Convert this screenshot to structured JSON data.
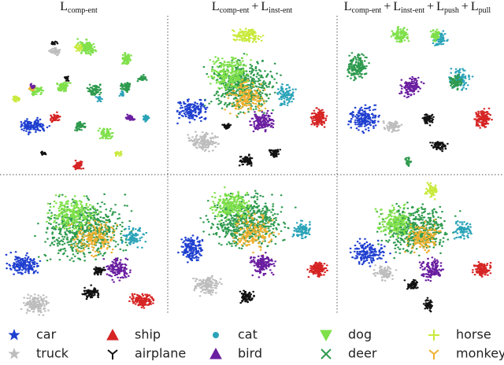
{
  "titles": [
    [
      {
        "base": "L",
        "sub": "comp-ent"
      }
    ],
    [
      {
        "base": "L",
        "sub": "comp-ent"
      },
      {
        "base": "L",
        "sub": "inst-ent"
      }
    ],
    [
      {
        "base": "L",
        "sub": "comp-ent"
      },
      {
        "base": "L",
        "sub": "inst-ent"
      },
      {
        "base": "L",
        "sub": "push"
      },
      {
        "base": "L",
        "sub": "pull"
      }
    ]
  ],
  "operator": "+",
  "legend": [
    {
      "label": "car",
      "color": "#1f3fd0",
      "marker": "star"
    },
    {
      "label": "truck",
      "color": "#bdbdbd",
      "marker": "star"
    },
    {
      "label": "ship",
      "color": "#d62424",
      "marker": "triangle"
    },
    {
      "label": "airplane",
      "color": "#111111",
      "marker": "tri-down"
    },
    {
      "label": "cat",
      "color": "#2aa3b8",
      "marker": "circle"
    },
    {
      "label": "bird",
      "color": "#6a1ea0",
      "marker": "triangle"
    },
    {
      "label": "dog",
      "color": "#7fe04a",
      "marker": "triangle-down"
    },
    {
      "label": "deer",
      "color": "#2e9a4e",
      "marker": "x"
    },
    {
      "label": "horse",
      "color": "#c8ea3c",
      "marker": "plus"
    },
    {
      "label": "monkey",
      "color": "#f0b030",
      "marker": "tri-down"
    }
  ]
}
